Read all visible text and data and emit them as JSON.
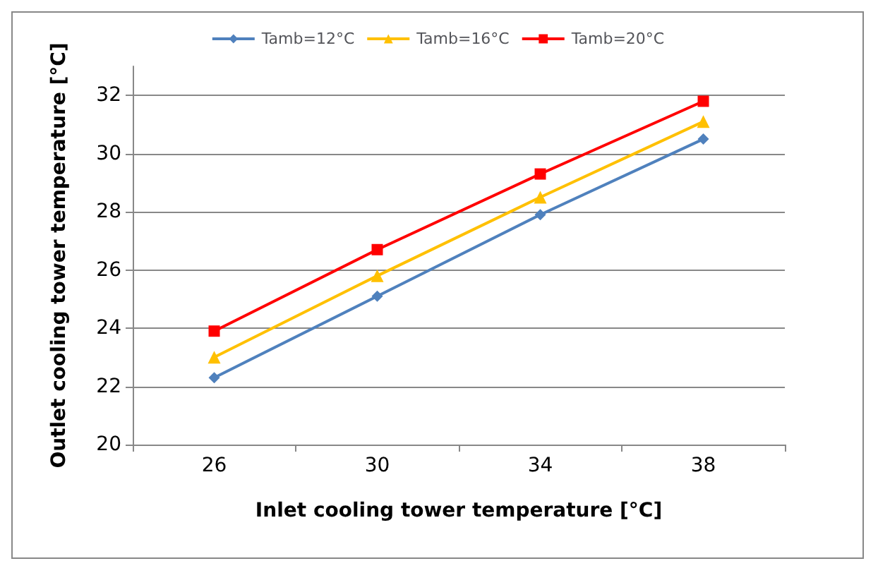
{
  "chart_data": {
    "type": "line",
    "xlabel": "Inlet cooling tower temperature [°C]",
    "ylabel": "Outlet cooling tower temperature [°C]",
    "categories": [
      "26",
      "30",
      "34",
      "38"
    ],
    "series": [
      {
        "name": "Tamb=12°C",
        "color": "#4f81bd",
        "marker": "diamond",
        "values": [
          22.3,
          25.1,
          27.9,
          30.5
        ]
      },
      {
        "name": "Tamb=16°C",
        "color": "#ffc000",
        "marker": "triangle",
        "values": [
          23.0,
          25.8,
          28.5,
          31.1
        ]
      },
      {
        "name": "Tamb=20°C",
        "color": "#ff0000",
        "marker": "square",
        "values": [
          23.9,
          26.7,
          29.3,
          31.8
        ]
      }
    ],
    "ylim": [
      20,
      33
    ],
    "yticks": [
      20,
      22,
      24,
      26,
      28,
      30,
      32
    ],
    "grid": "y",
    "legend": "top"
  }
}
